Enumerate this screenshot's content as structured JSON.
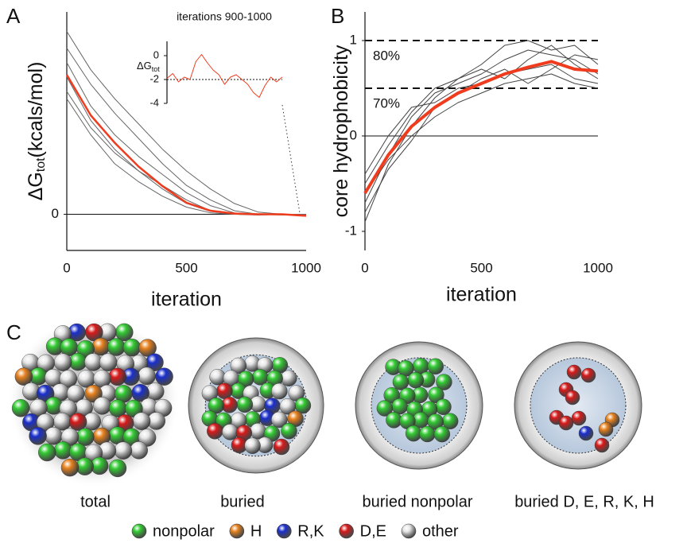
{
  "chart_data": [
    {
      "type": "line",
      "panel": "A",
      "ylabel": {
        "main": "ΔG",
        "sub": "tot",
        "unit": "(kcals/mol)"
      },
      "xlabel": "iteration",
      "x": [
        0,
        100,
        200,
        300,
        400,
        500,
        600,
        700,
        800,
        900,
        1000
      ],
      "xlim": [
        0,
        1000
      ],
      "xticks": [
        0,
        500,
        1000
      ],
      "ylim": [
        -5,
        28
      ],
      "yticks": [
        0
      ],
      "hlines": [
        {
          "value": 0,
          "style": "solid"
        }
      ],
      "series": [
        {
          "color": "#666666",
          "linewidth": 1,
          "values": [
            25.3,
            20,
            16,
            12.5,
            9,
            6,
            3.5,
            1.5,
            0.3,
            0,
            -0.2
          ]
        },
        {
          "color": "#666666",
          "linewidth": 1,
          "values": [
            23,
            18,
            14,
            10.5,
            7,
            4,
            2,
            0.5,
            0,
            0,
            -0.1
          ]
        },
        {
          "color": "#666666",
          "linewidth": 1,
          "values": [
            21,
            15,
            11,
            8,
            5.5,
            3,
            1.2,
            0.2,
            0,
            -0.1,
            0
          ]
        },
        {
          "color": "#666666",
          "linewidth": 1,
          "values": [
            19,
            13,
            9,
            6,
            3.5,
            1.5,
            0.4,
            0,
            0,
            0,
            -0.2
          ]
        },
        {
          "color": "#666666",
          "linewidth": 1,
          "values": [
            17,
            12,
            8.5,
            6,
            4,
            2,
            0.5,
            0,
            -0.1,
            0,
            0
          ]
        },
        {
          "color": "#666666",
          "linewidth": 1,
          "values": [
            16,
            11,
            7,
            4.5,
            2.5,
            1,
            0.2,
            0,
            0,
            0,
            0
          ]
        },
        {
          "color": "#f03c1e",
          "linewidth": 2.5,
          "values": [
            19.3,
            13.7,
            9.9,
            6.6,
            3.9,
            1.6,
            0.5,
            0.1,
            0,
            0,
            -0.2
          ]
        }
      ]
    },
    {
      "type": "line",
      "title": "iterations 900-1000",
      "ylabel": {
        "main": "ΔG",
        "sub": "tot"
      },
      "x": [
        900,
        905,
        910,
        915,
        920,
        925,
        930,
        935,
        940,
        945,
        950,
        955,
        960,
        965,
        970,
        975,
        980,
        985,
        990,
        995,
        1000
      ],
      "xlim": [
        900,
        1000
      ],
      "ylim": [
        -4,
        1.2
      ],
      "yticks": [
        0,
        -2,
        -4
      ],
      "hlines": [
        {
          "value": -2,
          "style": "dotted"
        }
      ],
      "series": [
        {
          "color": "#f03c1e",
          "linewidth": 1,
          "values": [
            -1.9,
            -1.5,
            -2.2,
            -1.8,
            -2.0,
            -0.5,
            0.1,
            -0.6,
            -1.2,
            -1.6,
            -2.4,
            -1.8,
            -1.6,
            -2.0,
            -2.4,
            -3.1,
            -3.5,
            -2.5,
            -1.8,
            -2.2,
            -1.8
          ]
        }
      ]
    },
    {
      "type": "line",
      "panel": "B",
      "ylabel": {
        "main": "core hydrophobicity"
      },
      "xlabel": "iteration",
      "x": [
        0,
        100,
        200,
        300,
        400,
        500,
        600,
        700,
        800,
        900,
        1000
      ],
      "xlim": [
        0,
        1000
      ],
      "xticks": [
        0,
        500,
        1000
      ],
      "ylim": [
        -1.2,
        1.3
      ],
      "yticks": [
        -1,
        0,
        1
      ],
      "hlines": [
        {
          "value": 1,
          "style": "dashed",
          "label": "80%"
        },
        {
          "value": 0.5,
          "style": "dashed",
          "label": "70%"
        },
        {
          "value": 0,
          "style": "solid"
        }
      ],
      "series": [
        {
          "color": "#444444",
          "linewidth": 1,
          "values": [
            -0.9,
            -0.3,
            0.1,
            0.4,
            0.6,
            0.75,
            0.95,
            1.0,
            0.9,
            0.95,
            0.75
          ]
        },
        {
          "color": "#444444",
          "linewidth": 1,
          "values": [
            -0.7,
            -0.2,
            0.2,
            0.45,
            0.55,
            0.65,
            0.8,
            0.9,
            0.85,
            0.8,
            0.65
          ]
        },
        {
          "color": "#444444",
          "linewidth": 1,
          "values": [
            -0.5,
            -0.1,
            0.25,
            0.5,
            0.6,
            0.7,
            0.6,
            0.8,
            0.95,
            0.75,
            0.6
          ]
        },
        {
          "color": "#444444",
          "linewidth": 1,
          "values": [
            -0.4,
            0.0,
            0.3,
            0.35,
            0.5,
            0.55,
            0.65,
            0.7,
            0.75,
            0.6,
            0.55
          ]
        },
        {
          "color": "#444444",
          "linewidth": 1,
          "values": [
            -0.6,
            -0.25,
            0.0,
            0.2,
            0.35,
            0.45,
            0.55,
            0.6,
            0.65,
            0.55,
            0.5
          ]
        },
        {
          "color": "#444444",
          "linewidth": 1,
          "values": [
            -0.8,
            -0.35,
            -0.05,
            0.3,
            0.45,
            0.6,
            0.7,
            0.55,
            0.7,
            0.85,
            0.8
          ]
        },
        {
          "color": "#f03c1e",
          "linewidth": 4,
          "values": [
            -0.6,
            -0.2,
            0.1,
            0.3,
            0.45,
            0.55,
            0.65,
            0.72,
            0.78,
            0.7,
            0.68
          ]
        }
      ]
    }
  ],
  "panel_c": {
    "label": "C",
    "captions": [
      "total",
      "buried",
      "buried nonpolar",
      "buried D, E, R, K, H"
    ],
    "legend": [
      {
        "name": "nonpolar",
        "color": "#33cc33"
      },
      {
        "name": "H",
        "color": "#e8821e"
      },
      {
        "name": "R,K",
        "color": "#1a2fcc"
      },
      {
        "name": "D,E",
        "color": "#d81a1a"
      },
      {
        "name": "other",
        "color": "#e6e6e6"
      }
    ]
  }
}
